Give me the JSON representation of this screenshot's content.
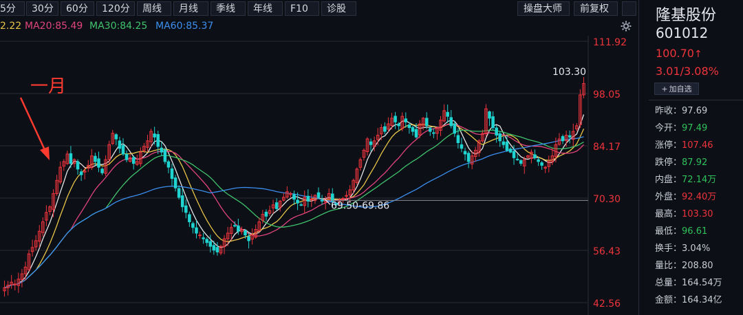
{
  "toolbar": {
    "periods": [
      "5分",
      "30分",
      "60分",
      "120分",
      "周线",
      "月线",
      "季线",
      "年线",
      "F10",
      "诊股"
    ],
    "master_btn": "操盘大师",
    "adjust_btn": "前复权"
  },
  "ma_legend": [
    {
      "label": "2.22",
      "color": "#e8c547"
    },
    {
      "label": "MA20:85.49",
      "color": "#e0457b"
    },
    {
      "label": "MA30:84.25",
      "color": "#3fc46d"
    },
    {
      "label": "MA60:85.37",
      "color": "#3a8ff0"
    }
  ],
  "annotation": {
    "text": "一月",
    "color": "#ff3b30"
  },
  "stock": {
    "name": "隆基股份",
    "code": "601012",
    "price": "100.70",
    "price_arrow": "↑",
    "change": "3.01/3.08%",
    "watch_label": "加自选"
  },
  "stats": [
    {
      "label": "昨收",
      "value": "97.69",
      "tone": "neutral"
    },
    {
      "label": "今开",
      "value": "97.49",
      "tone": "green"
    },
    {
      "label": "涨停",
      "value": "107.46",
      "tone": "red"
    },
    {
      "label": "跌停",
      "value": "87.92",
      "tone": "green"
    },
    {
      "label": "内盘",
      "value": "72.14万",
      "tone": "green"
    },
    {
      "label": "外盘",
      "value": "92.40万",
      "tone": "red"
    },
    {
      "label": "最高",
      "value": "103.30",
      "tone": "red"
    },
    {
      "label": "最低",
      "value": "96.61",
      "tone": "green"
    },
    {
      "label": "换手",
      "value": "3.04%",
      "tone": "neutral"
    },
    {
      "label": "量比",
      "value": "208.80",
      "tone": "neutral"
    },
    {
      "label": "总量",
      "value": "164.54万",
      "tone": "neutral"
    },
    {
      "label": "金额",
      "value": "164.34亿",
      "tone": "neutral"
    }
  ],
  "colors": {
    "up": "#f0343c",
    "down": "#1fd4d0",
    "ma5": "#e6e6e6",
    "ma10": "#e8c547",
    "ma20": "#e0457b",
    "ma30": "#3fc46d",
    "ma60": "#3a8ff0",
    "grid": "#262b36",
    "axis_label": "#f0343c"
  },
  "chart_data": {
    "type": "candlestick",
    "y_ticks": [
      "111.92",
      "98.05",
      "84.17",
      "70.30",
      "56.43",
      "42.56"
    ],
    "y_tick_values": [
      111.92,
      98.05,
      84.17,
      70.3,
      56.43,
      42.56
    ],
    "ylim": [
      42.56,
      111.92
    ],
    "high_label": "103.30",
    "high_value": 103.3,
    "support_label": "69.50-69.86",
    "support_value": 69.68,
    "closes": [
      46.5,
      47.2,
      48.0,
      47.5,
      48.8,
      50.2,
      52.0,
      55.5,
      57.2,
      59.0,
      61.5,
      64.0,
      66.5,
      68.0,
      71.5,
      75.0,
      78.5,
      80.0,
      82.0,
      79.5,
      80.5,
      78.0,
      76.5,
      77.5,
      79.0,
      81.5,
      80.0,
      78.5,
      77.0,
      80.5,
      84.5,
      87.5,
      86.0,
      83.5,
      82.0,
      80.5,
      81.0,
      79.5,
      80.0,
      82.5,
      84.0,
      85.5,
      88.0,
      86.5,
      84.0,
      82.5,
      80.0,
      78.5,
      75.5,
      73.0,
      70.5,
      68.0,
      66.5,
      64.0,
      62.5,
      61.0,
      60.5,
      59.5,
      58.5,
      57.5,
      56.5,
      56.0,
      57.5,
      59.5,
      61.0,
      62.5,
      63.0,
      61.5,
      62.0,
      60.5,
      59.0,
      60.5,
      62.0,
      64.0,
      66.0,
      65.5,
      67.0,
      68.5,
      67.5,
      69.5,
      70.5,
      72.0,
      71.5,
      70.0,
      69.0,
      68.5,
      70.5,
      69.5,
      70.0,
      71.0,
      70.5,
      69.5,
      70.0,
      71.5,
      69.5,
      68.5,
      69.8,
      70.2,
      71.0,
      72.5,
      75.0,
      78.0,
      80.5,
      83.0,
      86.0,
      84.5,
      85.5,
      87.0,
      89.0,
      88.0,
      90.0,
      91.5,
      90.5,
      89.5,
      92.0,
      90.5,
      89.0,
      88.0,
      86.5,
      90.0,
      91.5,
      89.5,
      88.0,
      87.5,
      89.0,
      91.0,
      93.5,
      92.0,
      89.5,
      87.5,
      85.0,
      83.5,
      82.0,
      80.0,
      81.5,
      83.0,
      85.5,
      87.5,
      94.0,
      91.5,
      89.0,
      87.0,
      85.5,
      84.5,
      83.0,
      82.5,
      81.0,
      80.5,
      79.5,
      80.5,
      81.5,
      82.5,
      81.0,
      80.0,
      79.0,
      78.5,
      80.0,
      81.5,
      84.5,
      86.0,
      85.5,
      87.0,
      86.5,
      88.0,
      89.5,
      97.7,
      100.7
    ]
  }
}
